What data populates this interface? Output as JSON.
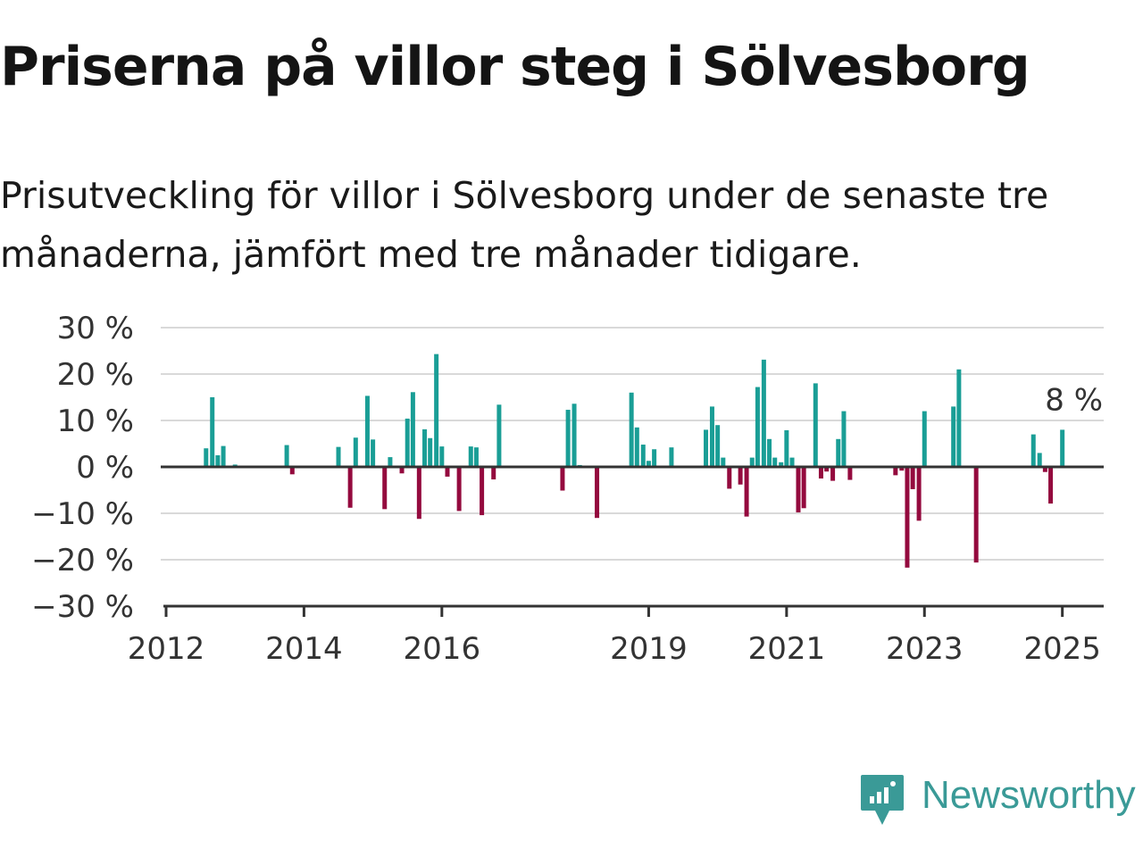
{
  "header": {
    "title": "Priserna på villor steg i Sölvesborg",
    "subtitle": "Prisutveckling för villor i Sölvesborg under de senaste tre månaderna, jämfört med tre månader tidigare."
  },
  "brand": {
    "name": "Newsworthy",
    "icon": "newsworthy-logo-icon",
    "color": "#3a9a97"
  },
  "colors": {
    "positive": "#1a9e96",
    "negative": "#940a3e",
    "grid": "#d9d9d9",
    "axis": "#333333"
  },
  "chart_data": {
    "type": "bar",
    "title": "Priserna på villor steg i Sölvesborg",
    "subtitle": "Prisutveckling för villor i Sölvesborg under de senaste tre månaderna, jämfört med tre månader tidigare.",
    "xlabel": "",
    "ylabel": "",
    "ylim": [
      -30,
      30
    ],
    "xlim": [
      2012.0,
      2025.6
    ],
    "y_ticks": [
      30,
      20,
      10,
      0,
      -10,
      -20,
      -30
    ],
    "y_tick_labels": [
      "30 %",
      "20 %",
      "10 %",
      "0 %",
      "−10 %",
      "−20 %",
      "−30 %"
    ],
    "x_ticks": [
      2012,
      2014,
      2016,
      2019,
      2021,
      2023,
      2025
    ],
    "x_tick_labels": [
      "2012",
      "2014",
      "2016",
      "2019",
      "2021",
      "2023",
      "2025"
    ],
    "grid": true,
    "annotation": {
      "text": "8 %",
      "x": 2025.0,
      "y": 8
    },
    "series": [
      {
        "x": [
          2012.58,
          2012.67,
          2012.75,
          2012.83,
          2013.0,
          2013.75,
          2013.83,
          2014.5,
          2014.67,
          2014.75,
          2014.92,
          2015.0,
          2015.17,
          2015.25,
          2015.42,
          2015.5,
          2015.58,
          2015.67,
          2015.75,
          2015.83,
          2015.92,
          2016.0,
          2016.08,
          2016.25,
          2016.42,
          2016.5,
          2016.58,
          2016.75,
          2016.83,
          2017.75,
          2017.83,
          2017.92,
          2018.0,
          2018.25,
          2018.75,
          2018.83,
          2018.92,
          2019.0,
          2019.08,
          2019.33,
          2019.83,
          2019.92,
          2020.0,
          2020.08,
          2020.17,
          2020.33,
          2020.42,
          2020.5,
          2020.58,
          2020.67,
          2020.75,
          2020.83,
          2020.92,
          2021.0,
          2021.08,
          2021.17,
          2021.25,
          2021.42,
          2021.5,
          2021.58,
          2021.67,
          2021.75,
          2021.83,
          2021.92,
          2022.58,
          2022.67,
          2022.75,
          2022.83,
          2022.92,
          2023.0,
          2023.42,
          2023.5,
          2023.75,
          2024.58,
          2024.67,
          2024.75,
          2024.83,
          2025.0
        ],
        "values": [
          4,
          15,
          2.5,
          4.5,
          0.5,
          4.7,
          -1.6,
          4.3,
          -8.8,
          6.3,
          15.3,
          5.9,
          -9.1,
          2.1,
          -1.4,
          10.4,
          16.1,
          -11.2,
          8.1,
          6.2,
          24.3,
          4.4,
          -2.1,
          -9.5,
          4.4,
          4.2,
          -10.4,
          -2.7,
          13.4,
          -5.1,
          12.3,
          13.6,
          0.4,
          -11,
          16,
          8.5,
          4.8,
          1.3,
          3.8,
          4.2,
          8,
          13,
          9,
          2,
          -4.7,
          -3.8,
          -10.7,
          2,
          17.2,
          23.1,
          6,
          2,
          1,
          7.9,
          2,
          -9.8,
          -8.9,
          18,
          -2.5,
          -1,
          -3,
          6,
          12,
          -2.8,
          -1.8,
          -0.8,
          -21.7,
          -4.8,
          -11.6,
          12,
          13,
          21,
          -20.6,
          7,
          3,
          -1.1,
          -7.9,
          8
        ]
      }
    ]
  }
}
